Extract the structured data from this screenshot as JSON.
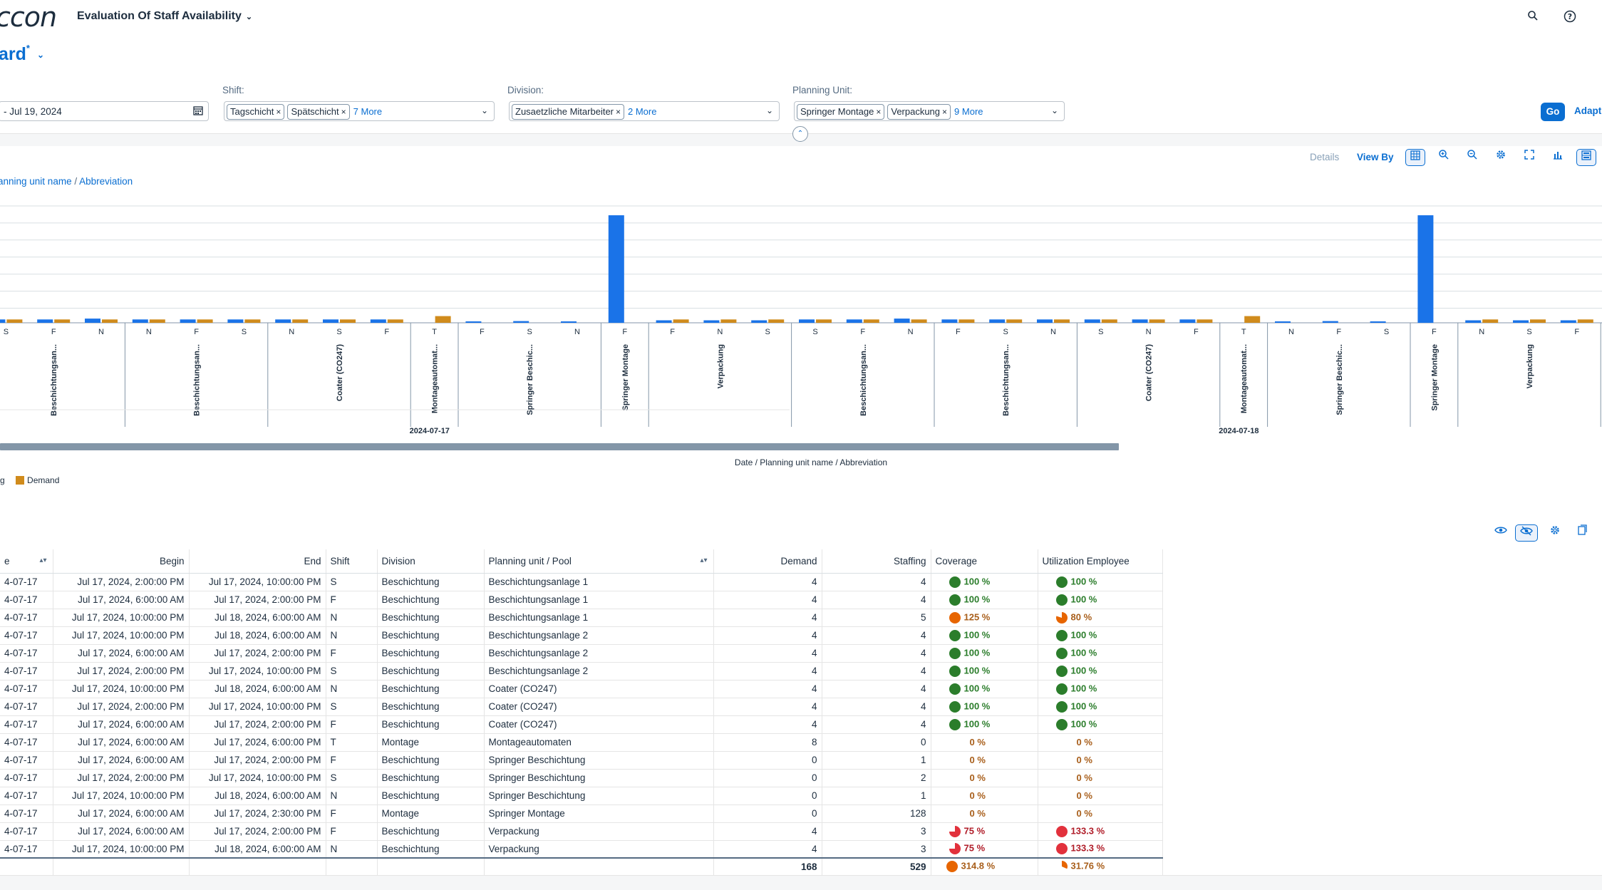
{
  "header": {
    "logo": "ccon",
    "app_title": "Evaluation Of Staff Availability",
    "search_icon": "search-icon",
    "help_icon": "help-icon"
  },
  "variant": {
    "name": "ard",
    "modified_marker": "*"
  },
  "filters": {
    "date": {
      "value": "- Jul 19, 2024"
    },
    "shift": {
      "label": "Shift:",
      "tokens": [
        "Tagschicht",
        "Spätschicht"
      ],
      "more": "7 More"
    },
    "division": {
      "label": "Division:",
      "tokens": [
        "Zusaetzliche Mitarbeiter"
      ],
      "more": "2 More"
    },
    "planning_unit": {
      "label": "Planning Unit:",
      "tokens": [
        "Springer Montage",
        "Verpackung"
      ],
      "more": "9 More"
    },
    "go_label": "Go",
    "adapt_label": "Adapt"
  },
  "chart_toolbar": {
    "details": "Details",
    "view_by": "View By"
  },
  "dimension_selector": {
    "part1": "anning unit name",
    "sep": " / ",
    "part2": "Abbreviation"
  },
  "chart_data": {
    "type": "bar",
    "axis_title": "Date / Planning unit name / Abbreviation",
    "legend": [
      "g",
      "Demand"
    ],
    "colors": {
      "staffing": "#1a73e8",
      "demand": "#d08b1c"
    },
    "dates": [
      "2024-07-17",
      "2024-07-18"
    ],
    "groups": [
      {
        "name": "Beschichtungsan...",
        "shifts": [
          "S",
          "F",
          "N"
        ]
      },
      {
        "name": "Beschichtungsan...",
        "shifts": [
          "N",
          "F",
          "S"
        ]
      },
      {
        "name": "Coater (CO247)",
        "shifts": [
          "N",
          "S",
          "F"
        ]
      },
      {
        "name": "Montageautomat...",
        "shifts": [
          "T"
        ]
      },
      {
        "name": "Springer Beschic...",
        "shifts": [
          "F",
          "S",
          "N"
        ]
      },
      {
        "name": "Springer Montage",
        "shifts": [
          "F"
        ]
      },
      {
        "name": "Verpackung",
        "shifts": [
          "F",
          "N",
          "S"
        ]
      },
      {
        "name": "Beschichtungsan...",
        "shifts": [
          "S",
          "F",
          "N"
        ]
      },
      {
        "name": "Beschichtungsan...",
        "shifts": [
          "F",
          "S",
          "N"
        ]
      },
      {
        "name": "Coater (CO247)",
        "shifts": [
          "S",
          "N",
          "F"
        ]
      },
      {
        "name": "Montageautomat...",
        "shifts": [
          "T"
        ]
      },
      {
        "name": "Springer Beschic...",
        "shifts": [
          "N",
          "F",
          "S"
        ]
      },
      {
        "name": "Springer Montage",
        "shifts": [
          "F"
        ]
      },
      {
        "name": "Verpackung",
        "shifts": [
          "N",
          "S",
          "F"
        ]
      }
    ],
    "staffing": [
      4,
      4,
      5,
      4,
      4,
      4,
      4,
      4,
      4,
      0,
      1,
      2,
      1,
      128,
      3,
      3,
      3,
      4,
      4,
      5,
      4,
      4,
      4,
      4,
      4,
      4,
      0,
      1,
      2,
      1,
      128,
      3,
      3,
      3
    ],
    "demand": [
      4,
      4,
      4,
      4,
      4,
      4,
      4,
      4,
      4,
      8,
      0,
      0,
      0,
      0,
      4,
      4,
      4,
      4,
      4,
      4,
      4,
      4,
      4,
      4,
      4,
      4,
      8,
      0,
      0,
      0,
      0,
      4,
      4,
      4
    ],
    "ylim": [
      0,
      140
    ]
  },
  "table": {
    "columns": [
      "e",
      "Begin",
      "End",
      "Shift",
      "Division",
      "Planning unit / Pool",
      "Demand",
      "Staffing",
      "Coverage",
      "Utilization Employee"
    ],
    "rows": [
      {
        "date": "4-07-17",
        "begin": "Jul 17, 2024, 2:00:00 PM",
        "end": "Jul 17, 2024, 10:00:00 PM",
        "shift": "S",
        "division": "Beschichtung",
        "unit": "Beschichtungsanlage 1",
        "demand": "4",
        "staffing": "4",
        "coverage": "100 %",
        "cov_status": "good",
        "cov_frac": 1,
        "util": "100 %",
        "util_status": "good",
        "util_frac": 1
      },
      {
        "date": "4-07-17",
        "begin": "Jul 17, 2024, 6:00:00 AM",
        "end": "Jul 17, 2024, 2:00:00 PM",
        "shift": "F",
        "division": "Beschichtung",
        "unit": "Beschichtungsanlage 1",
        "demand": "4",
        "staffing": "4",
        "coverage": "100 %",
        "cov_status": "good",
        "cov_frac": 1,
        "util": "100 %",
        "util_status": "good",
        "util_frac": 1
      },
      {
        "date": "4-07-17",
        "begin": "Jul 17, 2024, 10:00:00 PM",
        "end": "Jul 18, 2024, 6:00:00 AM",
        "shift": "N",
        "division": "Beschichtung",
        "unit": "Beschichtungsanlage 1",
        "demand": "4",
        "staffing": "5",
        "coverage": "125 %",
        "cov_status": "warn",
        "cov_frac": 1,
        "util": "80 %",
        "util_status": "warn",
        "util_frac": 0.8
      },
      {
        "date": "4-07-17",
        "begin": "Jul 17, 2024, 10:00:00 PM",
        "end": "Jul 18, 2024, 6:00:00 AM",
        "shift": "N",
        "division": "Beschichtung",
        "unit": "Beschichtungsanlage 2",
        "demand": "4",
        "staffing": "4",
        "coverage": "100 %",
        "cov_status": "good",
        "cov_frac": 1,
        "util": "100 %",
        "util_status": "good",
        "util_frac": 1
      },
      {
        "date": "4-07-17",
        "begin": "Jul 17, 2024, 6:00:00 AM",
        "end": "Jul 17, 2024, 2:00:00 PM",
        "shift": "F",
        "division": "Beschichtung",
        "unit": "Beschichtungsanlage 2",
        "demand": "4",
        "staffing": "4",
        "coverage": "100 %",
        "cov_status": "good",
        "cov_frac": 1,
        "util": "100 %",
        "util_status": "good",
        "util_frac": 1
      },
      {
        "date": "4-07-17",
        "begin": "Jul 17, 2024, 2:00:00 PM",
        "end": "Jul 17, 2024, 10:00:00 PM",
        "shift": "S",
        "division": "Beschichtung",
        "unit": "Beschichtungsanlage 2",
        "demand": "4",
        "staffing": "4",
        "coverage": "100 %",
        "cov_status": "good",
        "cov_frac": 1,
        "util": "100 %",
        "util_status": "good",
        "util_frac": 1
      },
      {
        "date": "4-07-17",
        "begin": "Jul 17, 2024, 10:00:00 PM",
        "end": "Jul 18, 2024, 6:00:00 AM",
        "shift": "N",
        "division": "Beschichtung",
        "unit": "Coater (CO247)",
        "demand": "4",
        "staffing": "4",
        "coverage": "100 %",
        "cov_status": "good",
        "cov_frac": 1,
        "util": "100 %",
        "util_status": "good",
        "util_frac": 1
      },
      {
        "date": "4-07-17",
        "begin": "Jul 17, 2024, 2:00:00 PM",
        "end": "Jul 17, 2024, 10:00:00 PM",
        "shift": "S",
        "division": "Beschichtung",
        "unit": "Coater (CO247)",
        "demand": "4",
        "staffing": "4",
        "coverage": "100 %",
        "cov_status": "good",
        "cov_frac": 1,
        "util": "100 %",
        "util_status": "good",
        "util_frac": 1
      },
      {
        "date": "4-07-17",
        "begin": "Jul 17, 2024, 6:00:00 AM",
        "end": "Jul 17, 2024, 2:00:00 PM",
        "shift": "F",
        "division": "Beschichtung",
        "unit": "Coater (CO247)",
        "demand": "4",
        "staffing": "4",
        "coverage": "100 %",
        "cov_status": "good",
        "cov_frac": 1,
        "util": "100 %",
        "util_status": "good",
        "util_frac": 1
      },
      {
        "date": "4-07-17",
        "begin": "Jul 17, 2024, 6:00:00 AM",
        "end": "Jul 17, 2024, 6:00:00 PM",
        "shift": "T",
        "division": "Montage",
        "unit": "Montageautomaten",
        "demand": "8",
        "staffing": "0",
        "coverage": "0 %",
        "cov_status": "none",
        "cov_frac": 0,
        "util": "0 %",
        "util_status": "none",
        "util_frac": 0
      },
      {
        "date": "4-07-17",
        "begin": "Jul 17, 2024, 6:00:00 AM",
        "end": "Jul 17, 2024, 2:00:00 PM",
        "shift": "F",
        "division": "Beschichtung",
        "unit": "Springer Beschichtung",
        "demand": "0",
        "staffing": "1",
        "coverage": "0 %",
        "cov_status": "none",
        "cov_frac": 0,
        "util": "0 %",
        "util_status": "none",
        "util_frac": 0
      },
      {
        "date": "4-07-17",
        "begin": "Jul 17, 2024, 2:00:00 PM",
        "end": "Jul 17, 2024, 10:00:00 PM",
        "shift": "S",
        "division": "Beschichtung",
        "unit": "Springer Beschichtung",
        "demand": "0",
        "staffing": "2",
        "coverage": "0 %",
        "cov_status": "none",
        "cov_frac": 0,
        "util": "0 %",
        "util_status": "none",
        "util_frac": 0
      },
      {
        "date": "4-07-17",
        "begin": "Jul 17, 2024, 10:00:00 PM",
        "end": "Jul 18, 2024, 6:00:00 AM",
        "shift": "N",
        "division": "Beschichtung",
        "unit": "Springer Beschichtung",
        "demand": "0",
        "staffing": "1",
        "coverage": "0 %",
        "cov_status": "none",
        "cov_frac": 0,
        "util": "0 %",
        "util_status": "none",
        "util_frac": 0
      },
      {
        "date": "4-07-17",
        "begin": "Jul 17, 2024, 6:00:00 AM",
        "end": "Jul 17, 2024, 2:30:00 PM",
        "shift": "F",
        "division": "Montage",
        "unit": "Springer Montage",
        "demand": "0",
        "staffing": "128",
        "coverage": "0 %",
        "cov_status": "none",
        "cov_frac": 0,
        "util": "0 %",
        "util_status": "none",
        "util_frac": 0
      },
      {
        "date": "4-07-17",
        "begin": "Jul 17, 2024, 6:00:00 AM",
        "end": "Jul 17, 2024, 2:00:00 PM",
        "shift": "F",
        "division": "Beschichtung",
        "unit": "Verpackung",
        "demand": "4",
        "staffing": "3",
        "coverage": "75 %",
        "cov_status": "bad",
        "cov_frac": 0.75,
        "util": "133.3 %",
        "util_status": "bad",
        "util_frac": 1
      },
      {
        "date": "4-07-17",
        "begin": "Jul 17, 2024, 10:00:00 PM",
        "end": "Jul 18, 2024, 6:00:00 AM",
        "shift": "N",
        "division": "Beschichtung",
        "unit": "Verpackung",
        "demand": "4",
        "staffing": "3",
        "coverage": "75 %",
        "cov_status": "bad",
        "cov_frac": 0.75,
        "util": "133.3 %",
        "util_status": "bad",
        "util_frac": 1
      }
    ],
    "totals": {
      "demand": "168",
      "staffing": "529",
      "coverage": "314.8 %",
      "cov_status": "warn",
      "cov_frac": 1,
      "util": "31.76 %",
      "util_status": "warn",
      "util_frac": 0.3176
    },
    "status_colors": {
      "good": "#2b7d2b",
      "warn": "#e76500",
      "bad": "#e2313c",
      "none": "#a85e1a"
    }
  }
}
